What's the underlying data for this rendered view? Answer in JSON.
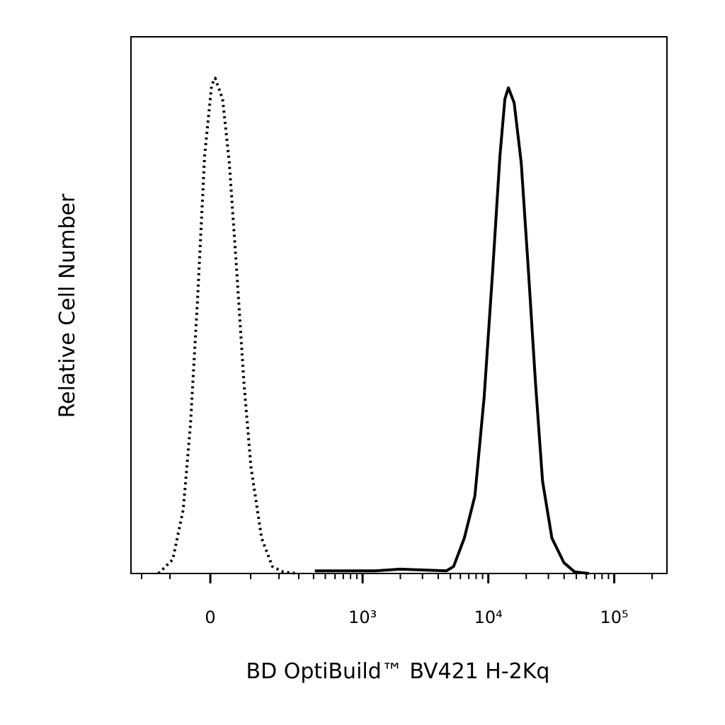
{
  "chart_data": {
    "type": "histogram-overlay",
    "xlabel": "BD OptiBuild™ BV421 H-2Kq",
    "ylabel": "Relative Cell Number",
    "xscale": "biexponential",
    "xlim": [
      -250,
      262144
    ],
    "ylim": [
      0,
      100
    ],
    "xticks": [
      0,
      {
        "value": 1000,
        "label": "10³"
      },
      {
        "value": 10000,
        "label": "10⁴"
      },
      {
        "value": 100000,
        "label": "10⁵"
      }
    ],
    "xminorticks": [
      -200,
      -100,
      100,
      200,
      300,
      400,
      500,
      600,
      700,
      800,
      900,
      2000,
      3000,
      4000,
      5000,
      6000,
      7000,
      8000,
      9000,
      20000,
      30000,
      40000,
      50000,
      60000,
      70000,
      80000,
      90000,
      200000
    ],
    "series": [
      {
        "color": "#000000",
        "dashed": true,
        "x": [
          -136,
          -92,
          -64,
          -46,
          -29,
          -13,
          3,
          11,
          28,
          44,
          62,
          81,
          101,
          134,
          173,
          218,
          290
        ],
        "values": [
          0,
          2.6,
          11.9,
          27.7,
          51.5,
          77.8,
          91,
          92.3,
          88.4,
          76.5,
          56.7,
          35.6,
          19.8,
          6.6,
          1.3,
          0.3,
          0
        ]
      },
      {
        "color": "#000000",
        "dashed": false,
        "x": [
          410,
          1265,
          1996,
          4654,
          5303,
          6448,
          7832,
          9275,
          10850,
          12360,
          13530,
          14450,
          16030,
          18250,
          20790,
          23670,
          26960,
          31960,
          39870,
          48460,
          62870
        ],
        "values": [
          0.5,
          0.5,
          0.8,
          0.5,
          1.3,
          6.6,
          14.5,
          33,
          56.7,
          77.8,
          88.4,
          90.5,
          87.7,
          76.5,
          56.7,
          35.6,
          17.2,
          6.6,
          2.0,
          0.3,
          0
        ]
      }
    ]
  }
}
